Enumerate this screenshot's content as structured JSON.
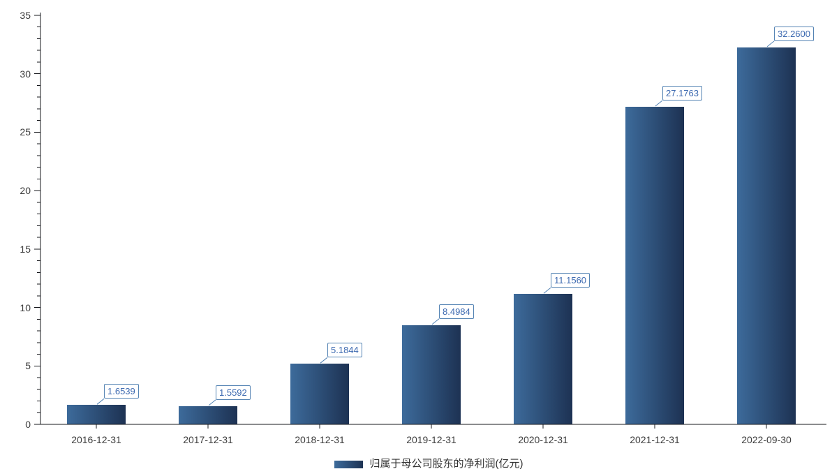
{
  "chart_data": {
    "type": "bar",
    "title": "",
    "categories": [
      "2016-12-31",
      "2017-12-31",
      "2018-12-31",
      "2019-12-31",
      "2020-12-31",
      "2021-12-31",
      "2022-09-30"
    ],
    "values": [
      1.6539,
      1.5592,
      5.1844,
      8.4984,
      11.156,
      27.1763,
      32.26
    ],
    "value_labels": [
      "1.6539",
      "1.5592",
      "5.1844",
      "8.4984",
      "11.1560",
      "27.1763",
      "32.2600"
    ],
    "series_name": "归属于母公司股东的净利润(亿元)",
    "xlabel": "",
    "ylabel": "",
    "ylim": [
      0,
      35
    ],
    "y_ticks": [
      0,
      5,
      10,
      15,
      20,
      25,
      30,
      35
    ],
    "y_major_step": 5,
    "y_minor_step": 1,
    "grid": false,
    "legend_position": "bottom",
    "colors": {
      "bar_gradient_start": "#3d6b9b",
      "bar_gradient_end": "#1d3253",
      "value_label_text": "#3c69b0",
      "value_label_border": "#5584b4",
      "axis_line": "#17181d",
      "tick_text": "#3d3d3d",
      "legend_text": "#333333",
      "background": "#ffffff"
    }
  }
}
